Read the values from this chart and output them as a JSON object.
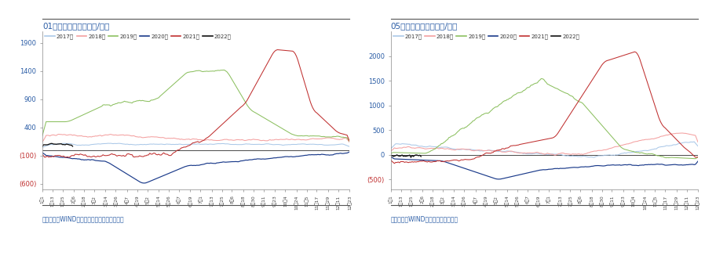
{
  "title_left": "01基差季节性图示（元/吨）",
  "title_right": "05基差季节性图示（元/吨）",
  "source_left": "资料来源：WIND、郑商所，五矿期货研究中心",
  "source_right": "资料来源：WIND，五矿期货研究中心",
  "years": [
    "2017年",
    "2018年",
    "2019年",
    "2020年",
    "2021年",
    "2022年"
  ],
  "colors": [
    "#aac8e8",
    "#f4a0a0",
    "#8cc060",
    "#1a3a8a",
    "#c03030",
    "#111111"
  ],
  "x_labels": [
    "1月13",
    "1月25",
    "2月6",
    "2月18",
    "3月2",
    "3月14",
    "3月26",
    "4月7",
    "4月19",
    "5月2",
    "5月14",
    "5月26",
    "6月7",
    "6月19",
    "7月1",
    "7月13",
    "7月25",
    "8月6",
    "8月18",
    "8月30",
    "9月11",
    "9月23",
    "10月4",
    "10月24",
    "11月5",
    "11月17",
    "11月29",
    "12月11",
    "12月23"
  ],
  "x_labels_full": [
    "1月1",
    "1月13",
    "1月25",
    "2月6",
    "2月18",
    "3月2",
    "3月14",
    "3月26",
    "4月7",
    "4月19",
    "5月2",
    "5月14",
    "5月26",
    "6月7",
    "6月19",
    "7月1",
    "7月13",
    "7月25",
    "8月6",
    "8月18",
    "8月30",
    "9月11",
    "9月23",
    "10月4",
    "10月24",
    "11月5",
    "11月17",
    "11月29",
    "12月11",
    "12月23"
  ],
  "left_ylim": [
    -700,
    2100
  ],
  "left_yticks": [
    -600,
    -100,
    400,
    900,
    1400,
    1900
  ],
  "left_ytick_labels": [
    "(600)",
    "(100)",
    "400",
    "900",
    "1400",
    "1900"
  ],
  "right_ylim": [
    -700,
    2500
  ],
  "right_yticks": [
    -500,
    0,
    500,
    1000,
    1500,
    2000
  ],
  "right_ytick_labels": [
    "(500)",
    "0",
    "500",
    "1000",
    "1500",
    "2000"
  ],
  "background_color": "#ffffff",
  "title_color": "#2b5da6",
  "source_color": "#2b5da6",
  "neg_tick_color": "#c03030"
}
